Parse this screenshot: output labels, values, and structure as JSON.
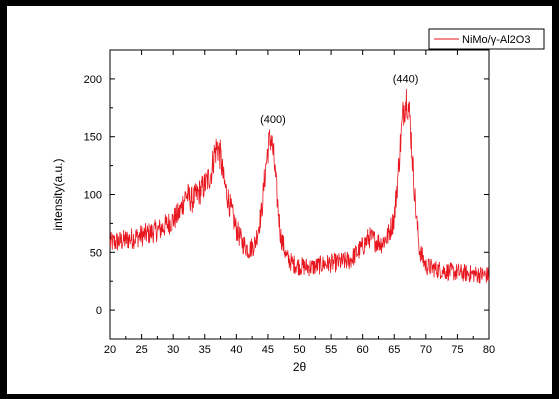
{
  "chart_data": {
    "type": "line",
    "xlabel": "2θ",
    "ylabel": "intensity(a.u.)",
    "xlim": [
      20,
      80
    ],
    "ylim": [
      -25,
      225
    ],
    "xticks": [
      20,
      25,
      30,
      35,
      40,
      45,
      50,
      55,
      60,
      65,
      70,
      75,
      80
    ],
    "yticks": [
      0,
      50,
      100,
      150,
      200
    ],
    "grid": false,
    "legend_position": "top-right",
    "line_color": "#e8161e",
    "series": [
      {
        "name": "NiMo/γ-Al2O3",
        "x": [
          20,
          22,
          24,
          26,
          28,
          30,
          31,
          32,
          33,
          34,
          35,
          36,
          36.5,
          37,
          37.5,
          38,
          39,
          40,
          41,
          42,
          43,
          44,
          44.5,
          45,
          45.5,
          46,
          46.5,
          47,
          48,
          49,
          50,
          52,
          54,
          56,
          58,
          60,
          61,
          62,
          63,
          64,
          65,
          65.5,
          66,
          66.5,
          67,
          67.5,
          68,
          68.5,
          69,
          70,
          72,
          74,
          76,
          78,
          80
        ],
        "values": [
          58,
          60,
          63,
          66,
          70,
          78,
          84,
          100,
          95,
          101,
          108,
          118,
          135,
          142,
          133,
          112,
          90,
          70,
          58,
          52,
          58,
          85,
          115,
          140,
          150,
          128,
          95,
          65,
          45,
          40,
          38,
          37,
          40,
          41,
          43,
          55,
          63,
          60,
          58,
          64,
          80,
          110,
          145,
          175,
          185,
          165,
          120,
          80,
          52,
          38,
          35,
          33,
          32,
          31,
          30
        ]
      }
    ],
    "annotations": [
      {
        "text": "(400)",
        "x": 45.8,
        "y": 162
      },
      {
        "text": "(440)",
        "x": 66.8,
        "y": 197
      }
    ]
  }
}
